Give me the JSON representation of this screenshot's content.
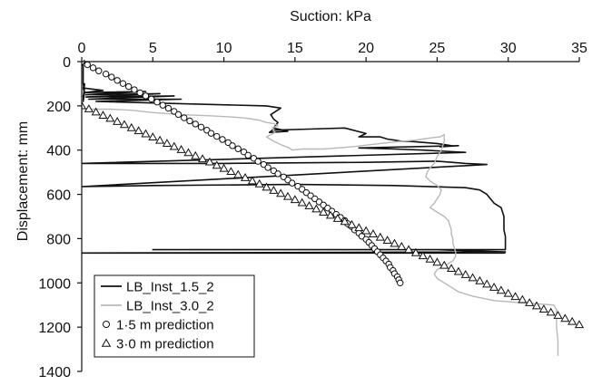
{
  "chart_data": {
    "type": "scatter",
    "title": "",
    "xlabel": "Suction: kPa",
    "ylabel": "Displacement: mm",
    "x_axis_position": "top",
    "y_inverted": true,
    "xlim": [
      0,
      35
    ],
    "ylim": [
      0,
      1400
    ],
    "x_ticks": [
      0,
      5,
      10,
      15,
      20,
      25,
      30,
      35
    ],
    "y_ticks": [
      0,
      200,
      400,
      600,
      800,
      1000,
      1200,
      1400
    ],
    "x_tick_labels": [
      "0",
      "5",
      "10",
      "15",
      "20",
      "25",
      "30",
      "35"
    ],
    "y_tick_labels": [
      "0",
      "200",
      "400",
      "600",
      "800",
      "1000",
      "1200",
      "1400"
    ],
    "grid": false,
    "legend_position": "bottom-left",
    "series": [
      {
        "name": "LB_Inst_1.5_2",
        "style": "line",
        "color": "#111111",
        "x": [
          0,
          0.1,
          0.1,
          0.1,
          0.2,
          0.1,
          0.2,
          0.1,
          0.2,
          0.1,
          0.2,
          1.5,
          0.2,
          4.5,
          0.3,
          5.5,
          0.3,
          6.5,
          0.5,
          7.0,
          1.0,
          13,
          14,
          13.3,
          13.5,
          13.8,
          13.5,
          14.5,
          13.2,
          13.4,
          16,
          18.5,
          20,
          19.5,
          21,
          21.5,
          22,
          22.5,
          23,
          24,
          25,
          26,
          25.2,
          26.5,
          19.5,
          22,
          24,
          27,
          0,
          10,
          20,
          25,
          27,
          28.5,
          0,
          5,
          15,
          22,
          27,
          28,
          28.5,
          29,
          29.5,
          29.6,
          29.7,
          29.7,
          29.7,
          29.7,
          29.8,
          29.8,
          29.8,
          5,
          15,
          25,
          29.8,
          0,
          29.8
        ],
        "y": [
          0,
          20,
          60,
          100,
          140,
          180,
          100,
          120,
          140,
          160,
          120,
          130,
          140,
          135,
          150,
          145,
          160,
          155,
          170,
          170,
          180,
          200,
          210,
          240,
          260,
          275,
          300,
          315,
          320,
          310,
          305,
          300,
          325,
          340,
          340,
          350,
          355,
          360,
          360,
          365,
          370,
          380,
          385,
          380,
          390,
          395,
          400,
          410,
          460,
          460,
          455,
          450,
          460,
          465,
          565,
          560,
          555,
          560,
          570,
          580,
          600,
          640,
          660,
          680,
          700,
          720,
          740,
          760,
          790,
          820,
          850,
          850,
          850,
          850,
          860,
          865,
          865
        ]
      },
      {
        "name": "LB_Inst_3.0_2",
        "style": "line",
        "color": "#b8b8b8",
        "x": [
          0,
          0.5,
          2,
          3.5,
          5,
          7,
          9,
          10.5,
          11.5,
          12,
          12.5,
          13,
          13.5,
          13.8,
          13.4,
          13.6,
          13.0,
          13.5,
          14,
          14.6,
          14.8,
          15.5,
          17,
          19,
          21,
          22.5,
          23.5,
          24,
          24.5,
          25.2,
          25.5,
          25.5,
          25.3,
          25.0,
          24.8,
          24.5,
          24.3,
          24.2,
          24.5,
          25,
          25.3,
          25.2,
          25.0,
          24.8,
          24.5,
          25.0,
          25.5,
          25.8,
          25.9,
          26.0,
          26.0,
          26.1,
          26.1,
          26.2,
          26.3,
          26.3,
          26.1,
          25.6,
          25.0,
          24.8,
          25.0,
          25.5,
          26.0,
          26.5,
          27.5,
          29,
          31,
          33.2,
          33.4,
          33.4,
          33.4,
          33.5,
          33.5
        ],
        "y": [
          210,
          215,
          215,
          220,
          230,
          240,
          245,
          250,
          255,
          260,
          265,
          275,
          280,
          290,
          300,
          320,
          340,
          360,
          375,
          390,
          400,
          395,
          395,
          385,
          370,
          360,
          355,
          350,
          345,
          340,
          330,
          360,
          400,
          430,
          460,
          480,
          500,
          520,
          540,
          560,
          580,
          600,
          620,
          640,
          660,
          680,
          700,
          720,
          740,
          760,
          780,
          800,
          820,
          840,
          860,
          880,
          900,
          920,
          940,
          960,
          980,
          1000,
          1020,
          1040,
          1060,
          1080,
          1090,
          1100,
          1120,
          1160,
          1200,
          1260,
          1330
        ]
      },
      {
        "name": "1·5 m prediction",
        "style": "marker-circle",
        "color": "#111111",
        "x": [
          0.0,
          0.4,
          0.8,
          1.2,
          1.7,
          2.1,
          2.5,
          2.9,
          3.3,
          3.7,
          4.1,
          4.5,
          4.9,
          5.3,
          5.7,
          6.1,
          6.5,
          6.8,
          7.2,
          7.6,
          8.0,
          8.4,
          8.8,
          9.1,
          9.5,
          9.9,
          10.3,
          10.6,
          11.0,
          11.4,
          11.7,
          12.1,
          12.4,
          12.8,
          13.1,
          13.5,
          13.8,
          14.2,
          14.5,
          14.8,
          15.2,
          15.5,
          15.8,
          16.1,
          16.4,
          16.7,
          17.0,
          17.3,
          17.6,
          17.9,
          18.2,
          18.5,
          18.7,
          19.0,
          19.2,
          19.5,
          19.7,
          20.0,
          20.2,
          20.4,
          20.6,
          20.8,
          21.0,
          21.2,
          21.4,
          21.6,
          21.7,
          21.9,
          22.0,
          22.2,
          22.3,
          22.4
        ],
        "y": [
          0,
          14,
          28,
          42,
          56,
          70,
          85,
          99,
          113,
          127,
          141,
          155,
          169,
          183,
          197,
          211,
          225,
          239,
          254,
          268,
          282,
          296,
          310,
          324,
          338,
          352,
          366,
          380,
          394,
          408,
          423,
          437,
          451,
          465,
          479,
          493,
          507,
          521,
          535,
          549,
          563,
          577,
          592,
          606,
          620,
          634,
          648,
          662,
          676,
          690,
          704,
          718,
          732,
          746,
          761,
          775,
          789,
          803,
          817,
          831,
          845,
          859,
          873,
          887,
          901,
          915,
          930,
          944,
          958,
          972,
          986,
          1000
        ]
      },
      {
        "name": "3·0 m prediction",
        "style": "marker-triangle",
        "color": "#111111",
        "x": [
          0.0,
          0.5,
          1.0,
          1.5,
          2.0,
          2.5,
          3.0,
          3.5,
          4.0,
          4.5,
          5.0,
          5.5,
          6.0,
          6.5,
          7.0,
          7.5,
          8.0,
          8.5,
          9.0,
          9.5,
          10.0,
          10.5,
          11.0,
          11.5,
          12.0,
          12.5,
          13.0,
          13.5,
          14.0,
          14.5,
          15.0,
          15.5,
          16.0,
          16.5,
          17.0,
          17.5,
          18.0,
          18.5,
          19.0,
          19.5,
          20.0,
          20.5,
          21.0,
          21.5,
          22.0,
          22.5,
          23.0,
          23.5,
          24.0,
          24.5,
          25.0,
          25.5,
          26.0,
          26.5,
          27.0,
          27.5,
          28.0,
          28.5,
          29.0,
          29.5,
          30.0,
          30.5,
          31.0,
          31.5,
          32.0,
          32.5,
          33.0,
          33.5,
          34.0,
          34.5,
          35.0
        ],
        "y": [
          200,
          214,
          228,
          243,
          257,
          271,
          285,
          299,
          313,
          327,
          341,
          356,
          370,
          384,
          398,
          412,
          426,
          440,
          454,
          469,
          483,
          497,
          511,
          525,
          539,
          553,
          568,
          582,
          596,
          610,
          624,
          638,
          652,
          666,
          681,
          695,
          709,
          723,
          737,
          751,
          765,
          779,
          794,
          808,
          822,
          836,
          850,
          864,
          878,
          893,
          907,
          921,
          935,
          949,
          963,
          977,
          991,
          1006,
          1020,
          1034,
          1048,
          1062,
          1076,
          1090,
          1104,
          1119,
          1133,
          1147,
          1161,
          1175,
          1189
        ]
      }
    ]
  }
}
